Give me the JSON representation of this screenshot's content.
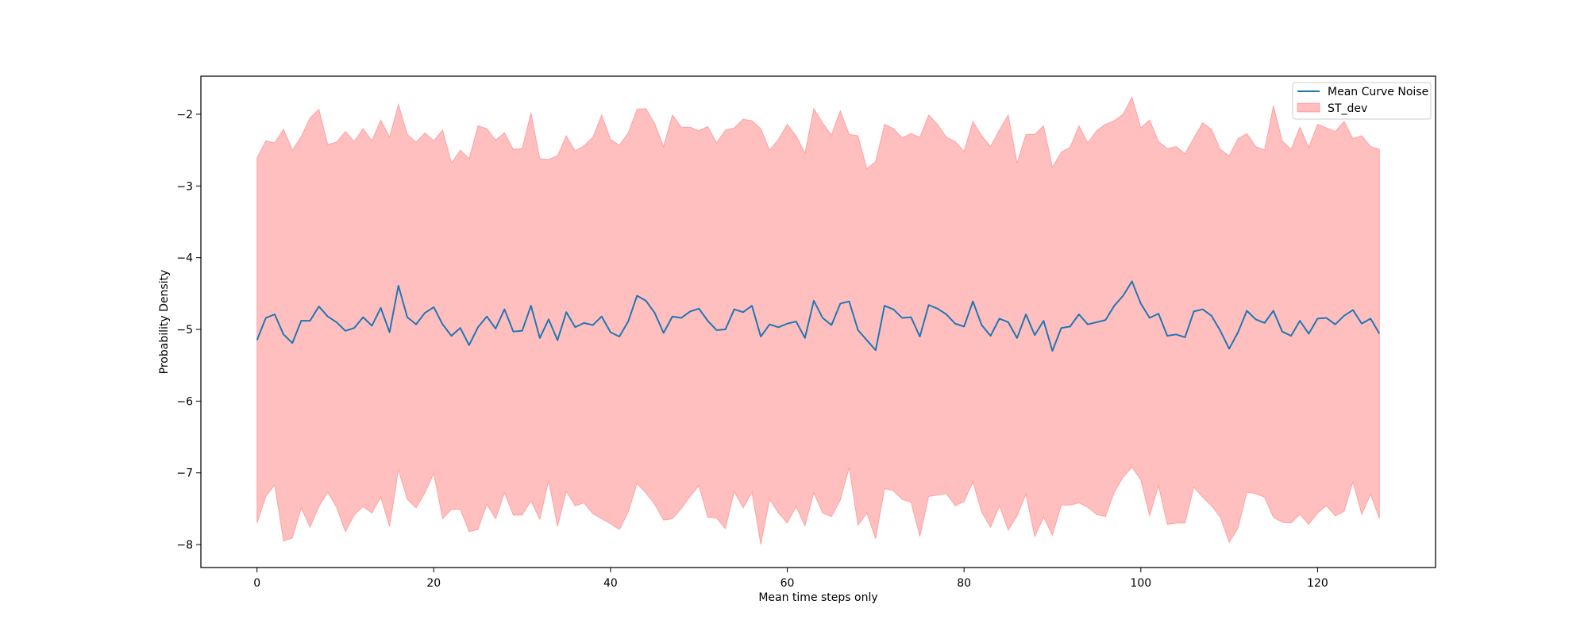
{
  "chart_data": {
    "type": "line",
    "title": "",
    "xlabel": "Mean time steps only",
    "ylabel": "Probability Density",
    "xlim": [
      -6.35,
      133.35
    ],
    "ylim": [
      -8.32,
      -1.47
    ],
    "xticks": [
      0,
      20,
      40,
      60,
      80,
      100,
      120
    ],
    "yticks": [
      -8,
      -7,
      -6,
      -5,
      -4,
      -3,
      -2
    ],
    "xtick_labels": [
      "0",
      "20",
      "40",
      "60",
      "80",
      "100",
      "120"
    ],
    "ytick_labels": [
      "−8",
      "−7",
      "−6",
      "−5",
      "−4",
      "−3",
      "−2"
    ],
    "grid": false,
    "legend_position": "top-right",
    "series": [
      {
        "name": "Mean Curve Noise",
        "kind": "line",
        "color": "#1f77b4",
        "x": [
          0,
          1,
          2,
          3,
          4,
          5,
          6,
          7,
          8,
          9,
          10,
          11,
          12,
          13,
          14,
          15,
          16,
          17,
          18,
          19,
          20,
          21,
          22,
          23,
          24,
          25,
          26,
          27,
          28,
          29,
          30,
          31,
          32,
          33,
          34,
          35,
          36,
          37,
          38,
          39,
          40,
          41,
          42,
          43,
          44,
          45,
          46,
          47,
          48,
          49,
          50,
          51,
          52,
          53,
          54,
          55,
          56,
          57,
          58,
          59,
          60,
          61,
          62,
          63,
          64,
          65,
          66,
          67,
          68,
          69,
          70,
          71,
          72,
          73,
          74,
          75,
          76,
          77,
          78,
          79,
          80,
          81,
          82,
          83,
          84,
          85,
          86,
          87,
          88,
          89,
          90,
          91,
          92,
          93,
          94,
          95,
          96,
          97,
          98,
          99,
          100,
          101,
          102,
          103,
          104,
          105,
          106,
          107,
          108,
          109,
          110,
          111,
          112,
          113,
          114,
          115,
          116,
          117,
          118,
          119,
          120,
          121,
          122,
          123,
          124,
          125,
          126,
          127
        ],
        "values": [
          -5.15,
          -4.84,
          -4.79,
          -5.07,
          -5.19,
          -4.88,
          -4.88,
          -4.68,
          -4.82,
          -4.9,
          -5.02,
          -4.98,
          -4.83,
          -4.95,
          -4.7,
          -5.04,
          -4.39,
          -4.83,
          -4.93,
          -4.77,
          -4.69,
          -4.93,
          -5.09,
          -4.98,
          -5.22,
          -4.97,
          -4.82,
          -4.99,
          -4.72,
          -5.03,
          -5.02,
          -4.67,
          -5.12,
          -4.86,
          -5.15,
          -4.76,
          -4.97,
          -4.91,
          -4.94,
          -4.82,
          -5.04,
          -5.1,
          -4.89,
          -4.53,
          -4.6,
          -4.77,
          -5.05,
          -4.82,
          -4.84,
          -4.75,
          -4.71,
          -4.88,
          -5.01,
          -5.0,
          -4.72,
          -4.76,
          -4.67,
          -5.1,
          -4.93,
          -4.97,
          -4.92,
          -4.89,
          -5.12,
          -4.6,
          -4.84,
          -4.94,
          -4.64,
          -4.61,
          -5.01,
          -5.15,
          -5.29,
          -4.67,
          -4.72,
          -4.84,
          -4.83,
          -5.1,
          -4.66,
          -4.71,
          -4.79,
          -4.92,
          -4.96,
          -4.61,
          -4.94,
          -5.09,
          -4.85,
          -4.9,
          -5.12,
          -4.79,
          -5.08,
          -4.88,
          -5.3,
          -4.98,
          -4.96,
          -4.79,
          -4.93,
          -4.9,
          -4.87,
          -4.67,
          -4.53,
          -4.33,
          -4.64,
          -4.84,
          -4.78,
          -5.09,
          -5.07,
          -5.11,
          -4.75,
          -4.72,
          -4.81,
          -5.02,
          -5.27,
          -5.04,
          -4.74,
          -4.86,
          -4.91,
          -4.74,
          -5.03,
          -5.09,
          -4.88,
          -5.06,
          -4.85,
          -4.84,
          -4.93,
          -4.81,
          -4.73,
          -4.92,
          -4.85,
          -5.06
        ]
      },
      {
        "name": "ST_dev",
        "kind": "band",
        "color": "#ff0000",
        "upper": [
          -2.61,
          -2.37,
          -2.4,
          -2.21,
          -2.5,
          -2.31,
          -2.05,
          -1.93,
          -2.42,
          -2.39,
          -2.24,
          -2.38,
          -2.2,
          -2.37,
          -2.08,
          -2.32,
          -1.86,
          -2.28,
          -2.39,
          -2.26,
          -2.37,
          -2.22,
          -2.68,
          -2.5,
          -2.62,
          -2.16,
          -2.2,
          -2.36,
          -2.26,
          -2.49,
          -2.48,
          -1.98,
          -2.62,
          -2.63,
          -2.58,
          -2.3,
          -2.51,
          -2.44,
          -2.32,
          -2.01,
          -2.35,
          -2.43,
          -2.26,
          -1.93,
          -1.92,
          -2.13,
          -2.45,
          -2.01,
          -2.18,
          -2.18,
          -2.23,
          -2.17,
          -2.4,
          -2.22,
          -2.19,
          -2.07,
          -2.09,
          -2.2,
          -2.5,
          -2.35,
          -2.14,
          -2.3,
          -2.54,
          -1.92,
          -2.12,
          -2.29,
          -1.95,
          -2.28,
          -2.3,
          -2.76,
          -2.66,
          -2.14,
          -2.2,
          -2.33,
          -2.27,
          -2.32,
          -2.01,
          -2.14,
          -2.32,
          -2.38,
          -2.52,
          -2.1,
          -2.3,
          -2.45,
          -2.22,
          -2.01,
          -2.68,
          -2.28,
          -2.28,
          -2.16,
          -2.74,
          -2.53,
          -2.46,
          -2.16,
          -2.4,
          -2.23,
          -2.14,
          -2.09,
          -2.0,
          -1.76,
          -2.19,
          -2.08,
          -2.38,
          -2.48,
          -2.45,
          -2.55,
          -2.33,
          -2.12,
          -2.21,
          -2.49,
          -2.58,
          -2.34,
          -2.27,
          -2.45,
          -2.5,
          -1.88,
          -2.37,
          -2.49,
          -2.18,
          -2.46,
          -2.14,
          -2.19,
          -2.24,
          -2.1,
          -2.34,
          -2.3,
          -2.45,
          -2.49
        ],
        "lower": [
          -7.7,
          -7.33,
          -7.17,
          -7.95,
          -7.91,
          -7.49,
          -7.76,
          -7.47,
          -7.27,
          -7.48,
          -7.82,
          -7.59,
          -7.47,
          -7.56,
          -7.34,
          -7.75,
          -6.96,
          -7.37,
          -7.49,
          -7.28,
          -7.01,
          -7.64,
          -7.51,
          -7.51,
          -7.82,
          -7.79,
          -7.44,
          -7.64,
          -7.28,
          -7.59,
          -7.59,
          -7.39,
          -7.65,
          -7.11,
          -7.75,
          -7.26,
          -7.46,
          -7.42,
          -7.57,
          -7.64,
          -7.71,
          -7.79,
          -7.55,
          -7.15,
          -7.28,
          -7.44,
          -7.66,
          -7.64,
          -7.5,
          -7.33,
          -7.18,
          -7.62,
          -7.63,
          -7.78,
          -7.26,
          -7.49,
          -7.27,
          -8.0,
          -7.37,
          -7.56,
          -7.7,
          -7.47,
          -7.74,
          -7.28,
          -7.56,
          -7.61,
          -7.38,
          -6.93,
          -7.73,
          -7.56,
          -7.92,
          -7.22,
          -7.25,
          -7.37,
          -7.41,
          -7.89,
          -7.33,
          -7.31,
          -7.29,
          -7.46,
          -7.4,
          -7.13,
          -7.55,
          -7.76,
          -7.46,
          -7.8,
          -7.6,
          -7.3,
          -7.89,
          -7.62,
          -7.87,
          -7.45,
          -7.45,
          -7.42,
          -7.48,
          -7.58,
          -7.61,
          -7.27,
          -7.06,
          -6.92,
          -7.1,
          -7.6,
          -7.18,
          -7.72,
          -7.7,
          -7.7,
          -7.2,
          -7.34,
          -7.46,
          -7.62,
          -7.97,
          -7.77,
          -7.27,
          -7.29,
          -7.34,
          -7.62,
          -7.69,
          -7.7,
          -7.58,
          -7.72,
          -7.56,
          -7.46,
          -7.6,
          -7.54,
          -7.13,
          -7.58,
          -7.3,
          -7.64
        ]
      }
    ]
  }
}
